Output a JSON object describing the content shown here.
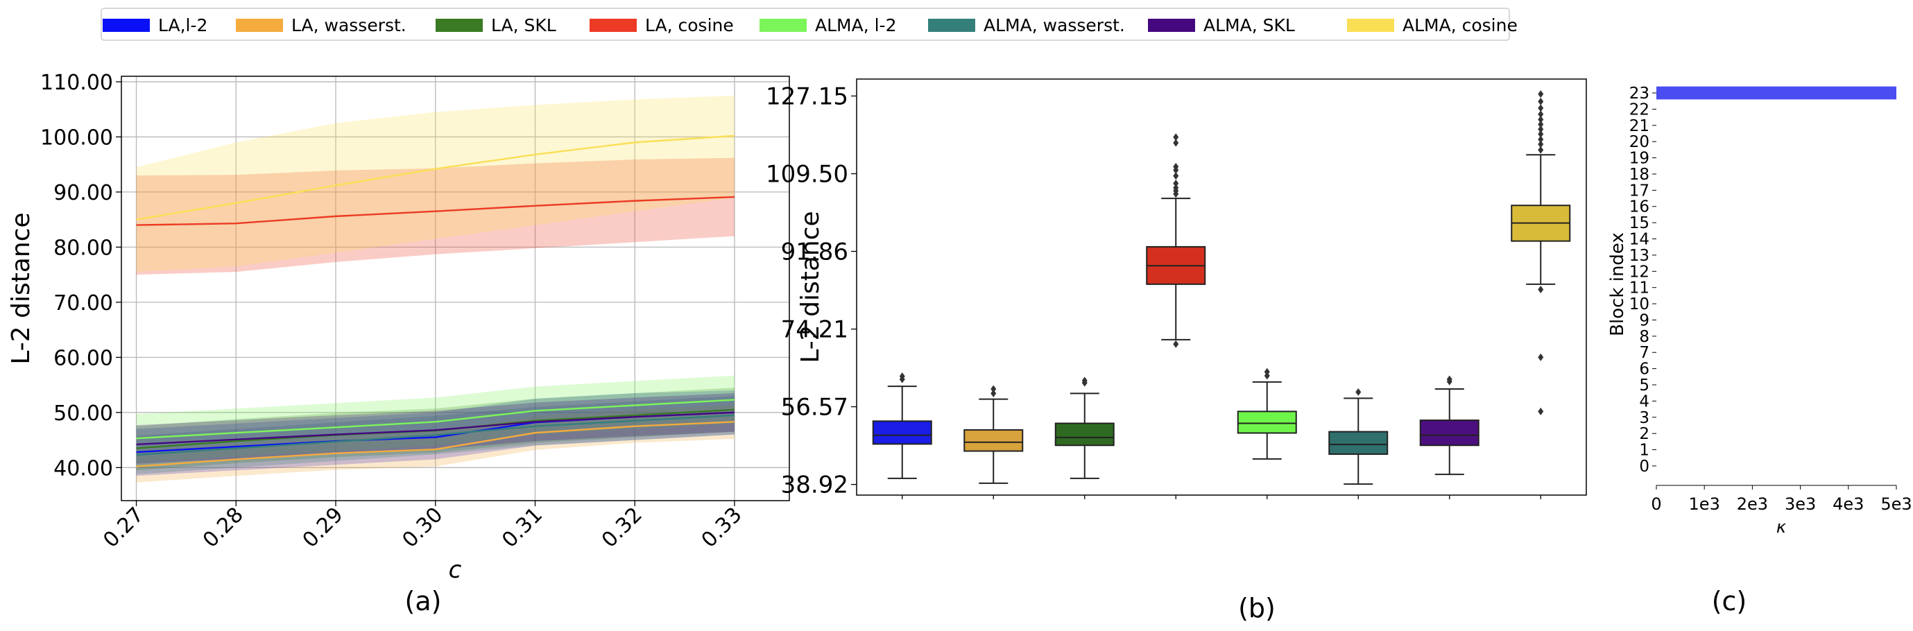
{
  "legend": [
    {
      "label": "LA,l-2",
      "color": "#0a10f5"
    },
    {
      "label": "LA, wasserst.",
      "color": "#f5ab3e"
    },
    {
      "label": "LA, SKL",
      "color": "#3a7a23"
    },
    {
      "label": "LA, cosine",
      "color": "#ec3a24"
    },
    {
      "label": "ALMA, l-2",
      "color": "#7cf55a"
    },
    {
      "label": "ALMA, wasserst.",
      "color": "#357f7b"
    },
    {
      "label": "ALMA, SKL",
      "color": "#45087f"
    },
    {
      "label": "ALMA, cosine",
      "color": "#fadf55"
    }
  ],
  "chart_data": [
    {
      "type": "line",
      "panel_label": "(a)",
      "xlabel": "c",
      "ylabel": "L-2 distance",
      "x": [
        0.27,
        0.28,
        0.29,
        0.3,
        0.31,
        0.32,
        0.33
      ],
      "x_ticks": [
        "0.27",
        "0.28",
        "0.29",
        "0.30",
        "0.31",
        "0.32",
        "0.33"
      ],
      "y_ticks": [
        "40.00",
        "50.00",
        "60.00",
        "70.00",
        "80.00",
        "90.00",
        "100.00",
        "110.00"
      ],
      "y_tick_values": [
        40,
        50,
        60,
        70,
        80,
        90,
        100,
        110
      ],
      "xlim": [
        0.2685,
        0.3355
      ],
      "ylim": [
        34,
        111
      ],
      "grid": true,
      "series": [
        {
          "name": "LA,l-2",
          "color": "#0a10f5",
          "values": [
            42.8,
            43.8,
            44.8,
            45.5,
            48.2,
            49.2,
            50.0
          ],
          "lower": [
            38.5,
            39.5,
            40.5,
            41.5,
            44.0,
            45.0,
            46.0
          ],
          "upper": [
            47.0,
            48.0,
            49.0,
            50.0,
            52.5,
            53.5,
            54.0
          ]
        },
        {
          "name": "LA, wasserst.",
          "color": "#f5ab3e",
          "values": [
            40.2,
            41.5,
            42.6,
            43.3,
            46.3,
            47.5,
            48.3
          ],
          "lower": [
            37.3,
            38.5,
            39.6,
            40.2,
            43.2,
            44.5,
            45.2
          ],
          "upper": [
            43.1,
            44.5,
            45.6,
            46.4,
            49.4,
            50.5,
            51.4
          ]
        },
        {
          "name": "LA, SKL",
          "color": "#3a7a23",
          "values": [
            43.5,
            44.8,
            45.9,
            46.7,
            48.5,
            49.5,
            50.5
          ],
          "lower": [
            39.5,
            40.8,
            41.9,
            42.7,
            44.5,
            45.5,
            46.5
          ],
          "upper": [
            47.5,
            48.8,
            49.9,
            50.7,
            52.5,
            53.5,
            54.5
          ]
        },
        {
          "name": "LA, cosine",
          "color": "#ec3a24",
          "values": [
            84.0,
            84.3,
            85.6,
            86.5,
            87.5,
            88.4,
            89.1
          ],
          "lower": [
            75.0,
            75.5,
            77.3,
            78.7,
            79.8,
            80.9,
            82.0
          ],
          "upper": [
            93.0,
            93.1,
            93.9,
            94.3,
            95.2,
            95.9,
            96.2
          ]
        },
        {
          "name": "ALMA, l-2",
          "color": "#7cf55a",
          "values": [
            45.3,
            46.3,
            47.3,
            48.3,
            50.3,
            51.3,
            52.3
          ],
          "lower": [
            41.0,
            42.0,
            43.0,
            44.0,
            46.0,
            47.0,
            48.0
          ],
          "upper": [
            49.7,
            50.7,
            51.7,
            52.7,
            54.7,
            55.7,
            56.7
          ]
        },
        {
          "name": "ALMA, wasserst.",
          "color": "#357f7b",
          "values": [
            42.3,
            43.5,
            44.7,
            45.9,
            47.5,
            48.5,
            49.5
          ],
          "lower": [
            38.8,
            40.0,
            41.2,
            42.4,
            44.0,
            45.0,
            46.0
          ],
          "upper": [
            45.8,
            47.0,
            48.2,
            49.4,
            51.0,
            52.0,
            53.0
          ]
        },
        {
          "name": "ALMA, SKL",
          "color": "#45087f",
          "values": [
            44.2,
            45.1,
            46.0,
            46.8,
            48.3,
            49.2,
            50.0
          ],
          "lower": [
            40.7,
            41.6,
            42.5,
            43.3,
            44.8,
            45.7,
            46.5
          ],
          "upper": [
            47.7,
            48.6,
            49.5,
            50.3,
            51.8,
            52.7,
            53.5
          ]
        },
        {
          "name": "ALMA, cosine",
          "color": "#fadf55",
          "values": [
            85.0,
            88.0,
            91.2,
            94.2,
            96.8,
            99.0,
            100.2
          ],
          "lower": [
            75.5,
            76.5,
            79.0,
            81.5,
            84.0,
            86.5,
            89.0
          ],
          "upper": [
            94.5,
            99.0,
            102.5,
            104.5,
            105.8,
            106.8,
            107.5
          ]
        }
      ]
    },
    {
      "type": "box",
      "panel_label": "(b)",
      "ylabel": "L-2 distance",
      "y_ticks": [
        "38.92",
        "56.57",
        "74.21",
        "91.86",
        "109.50",
        "127.15"
      ],
      "y_tick_values": [
        38.92,
        56.57,
        74.21,
        91.86,
        109.5,
        127.15
      ],
      "ylim": [
        36.5,
        131
      ],
      "boxes": [
        {
          "name": "LA,l-2",
          "color": "#1a1de6",
          "whisker_low": 40.3,
          "q1": 48.1,
          "median": 50.1,
          "q3": 53.3,
          "whisker_high": 61.2,
          "outliers": [
            62.8,
            63.5
          ]
        },
        {
          "name": "LA, wasserst.",
          "color": "#d8a23c",
          "whisker_low": 39.2,
          "q1": 46.5,
          "median": 48.5,
          "q3": 51.3,
          "whisker_high": 58.3,
          "outliers": [
            59.6,
            60.6
          ]
        },
        {
          "name": "LA, SKL",
          "color": "#2e6a22",
          "whisker_low": 40.3,
          "q1": 47.8,
          "median": 49.6,
          "q3": 52.8,
          "whisker_high": 59.6,
          "outliers": [
            62.0,
            62.5
          ]
        },
        {
          "name": "LA, cosine",
          "color": "#d3301f",
          "whisker_low": 71.8,
          "q1": 84.4,
          "median": 88.6,
          "q3": 92.9,
          "whisker_high": 103.9,
          "outliers": [
            70.8,
            104.9,
            105.6,
            106.3,
            107.3,
            109.0,
            110.3,
            111.1,
            116.5,
            117.8
          ]
        },
        {
          "name": "ALMA, l-2",
          "color": "#6ff54a",
          "whisker_low": 44.7,
          "q1": 50.6,
          "median": 52.8,
          "q3": 55.5,
          "whisker_high": 62.2,
          "outliers": [
            63.6,
            64.5
          ]
        },
        {
          "name": "ALMA, wasserst.",
          "color": "#2f6f6c",
          "whisker_low": 39.0,
          "q1": 45.8,
          "median": 48.0,
          "q3": 50.9,
          "whisker_high": 58.5,
          "outliers": [
            59.9
          ]
        },
        {
          "name": "ALMA, SKL",
          "color": "#4c0f7f",
          "whisker_low": 41.2,
          "q1": 47.8,
          "median": 50.1,
          "q3": 53.5,
          "whisker_high": 60.6,
          "outliers": [
            62.3,
            62.8
          ]
        },
        {
          "name": "ALMA, cosine",
          "color": "#d9bb3a",
          "whisker_low": 84.4,
          "q1": 94.2,
          "median": 98.3,
          "q3": 102.3,
          "whisker_high": 113.8,
          "outliers": [
            55.5,
            67.8,
            83.2,
            114.9,
            116.2,
            117.3,
            118.5,
            119.6,
            120.7,
            121.8,
            123.0,
            124.4,
            125.9,
            127.6
          ]
        }
      ]
    },
    {
      "type": "bar",
      "orientation": "horizontal",
      "panel_label": "(c)",
      "xlabel": "κ",
      "ylabel": "Block index",
      "x_ticks": [
        "0",
        "1e3",
        "2e3",
        "3e3",
        "4e3",
        "5e3"
      ],
      "x_tick_values": [
        0,
        1000,
        2000,
        3000,
        4000,
        5000
      ],
      "xlim": [
        0,
        5000
      ],
      "y_ticks": [
        "0",
        "1",
        "2",
        "3",
        "4",
        "5",
        "6",
        "7",
        "8",
        "9",
        "10",
        "11",
        "12",
        "13",
        "14",
        "15",
        "16",
        "17",
        "18",
        "19",
        "20",
        "21",
        "22",
        "23"
      ],
      "ylim": [
        -1.2,
        23.6
      ],
      "bars": [
        {
          "category": 23,
          "value": 5000,
          "color": "#4b4df0"
        }
      ]
    }
  ]
}
